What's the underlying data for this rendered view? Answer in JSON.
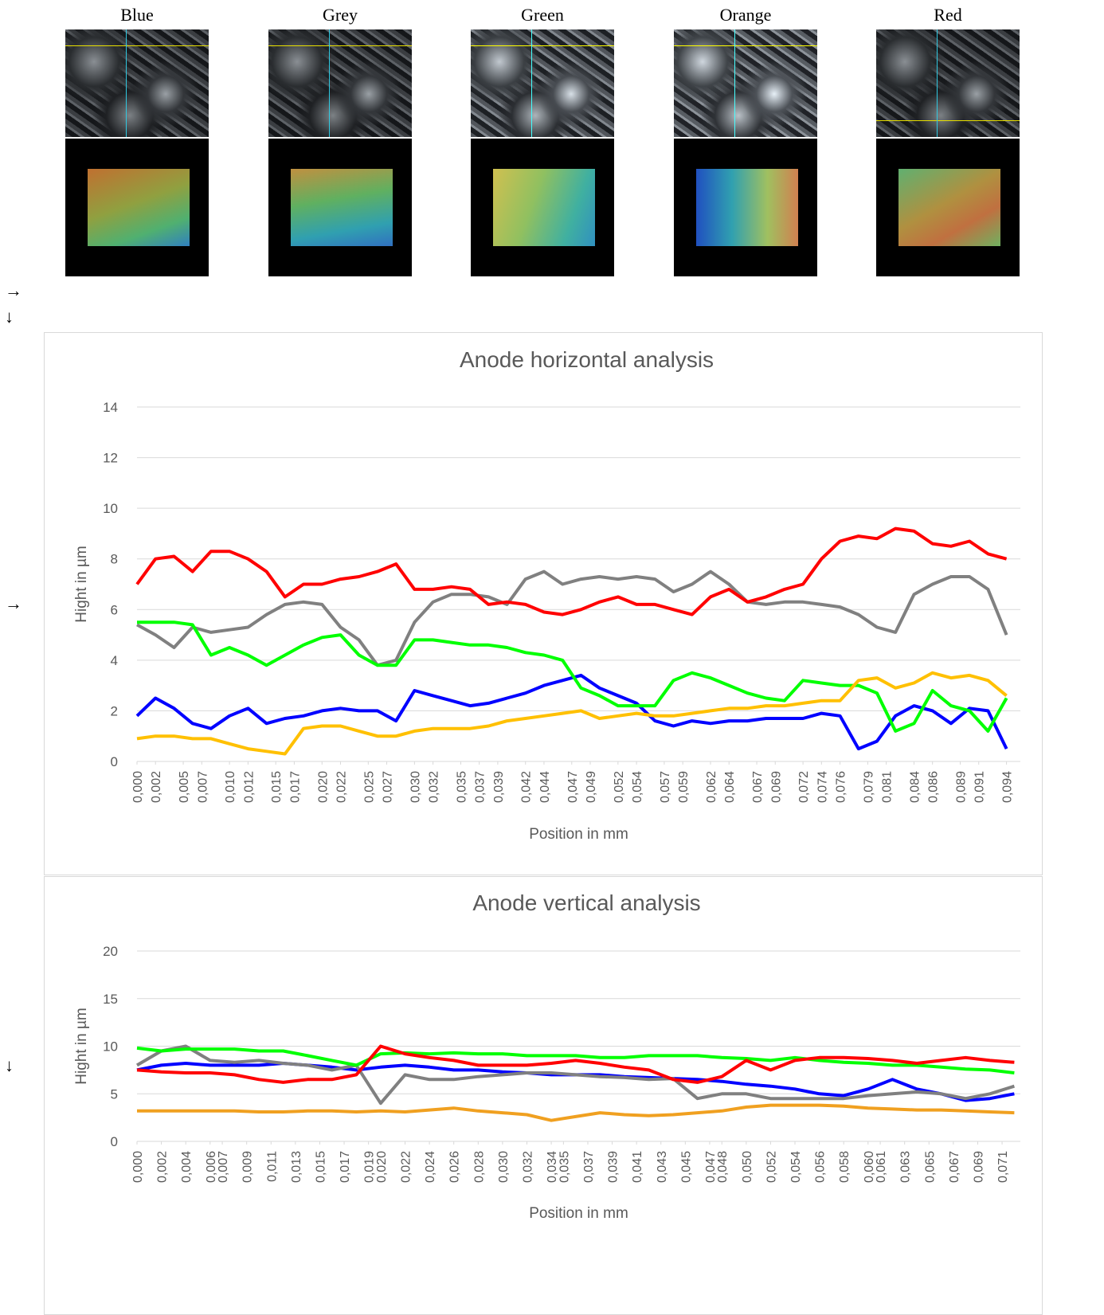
{
  "images": [
    {
      "label": "Blue"
    },
    {
      "label": "Grey"
    },
    {
      "label": "Green"
    },
    {
      "label": "Orange"
    },
    {
      "label": "Red"
    }
  ],
  "arrows": [
    "→",
    "↓",
    "→",
    "↓"
  ],
  "chart_data": [
    {
      "type": "line",
      "title": "Anode horizontal analysis",
      "x_label": "Position in mm",
      "y_label": "Hight in µm",
      "xlim": [
        0,
        0.0955
      ],
      "ylim": [
        0,
        14
      ],
      "yticks": [
        0,
        2,
        4,
        6,
        8,
        10,
        12,
        14
      ],
      "grid": true,
      "xticks": [
        {
          "value": 0,
          "label": "0,000"
        },
        {
          "value": 0.002,
          "label": "0,002"
        },
        {
          "value": 0.005,
          "label": "0,005"
        },
        {
          "value": 0.007,
          "label": "0,007"
        },
        {
          "value": 0.01,
          "label": "0,010"
        },
        {
          "value": 0.012,
          "label": "0,012"
        },
        {
          "value": 0.015,
          "label": "0,015"
        },
        {
          "value": 0.017,
          "label": "0,017"
        },
        {
          "value": 0.02,
          "label": "0,020"
        },
        {
          "value": 0.022,
          "label": "0,022"
        },
        {
          "value": 0.025,
          "label": "0,025"
        },
        {
          "value": 0.027,
          "label": "0,027"
        },
        {
          "value": 0.03,
          "label": "0,030"
        },
        {
          "value": 0.032,
          "label": "0,032"
        },
        {
          "value": 0.035,
          "label": "0,035"
        },
        {
          "value": 0.037,
          "label": "0,037"
        },
        {
          "value": 0.039,
          "label": "0,039"
        },
        {
          "value": 0.042,
          "label": "0,042"
        },
        {
          "value": 0.044,
          "label": "0,044"
        },
        {
          "value": 0.047,
          "label": "0,047"
        },
        {
          "value": 0.049,
          "label": "0,049"
        },
        {
          "value": 0.052,
          "label": "0,052"
        },
        {
          "value": 0.054,
          "label": "0,054"
        },
        {
          "value": 0.057,
          "label": "0,057"
        },
        {
          "value": 0.059,
          "label": "0,059"
        },
        {
          "value": 0.062,
          "label": "0,062"
        },
        {
          "value": 0.064,
          "label": "0,064"
        },
        {
          "value": 0.067,
          "label": "0,067"
        },
        {
          "value": 0.069,
          "label": "0,069"
        },
        {
          "value": 0.072,
          "label": "0,072"
        },
        {
          "value": 0.074,
          "label": "0,074"
        },
        {
          "value": 0.076,
          "label": "0,076"
        },
        {
          "value": 0.079,
          "label": "0,079"
        },
        {
          "value": 0.081,
          "label": "0,081"
        },
        {
          "value": 0.084,
          "label": "0,084"
        },
        {
          "value": 0.086,
          "label": "0,086"
        },
        {
          "value": 0.089,
          "label": "0,089"
        },
        {
          "value": 0.091,
          "label": "0,091"
        },
        {
          "value": 0.094,
          "label": "0,094"
        }
      ],
      "x": [
        0,
        0.002,
        0.004,
        0.006,
        0.008,
        0.01,
        0.012,
        0.014,
        0.016,
        0.018,
        0.02,
        0.022,
        0.024,
        0.026,
        0.028,
        0.03,
        0.032,
        0.034,
        0.036,
        0.038,
        0.04,
        0.042,
        0.044,
        0.046,
        0.048,
        0.05,
        0.052,
        0.054,
        0.056,
        0.058,
        0.06,
        0.062,
        0.064,
        0.066,
        0.068,
        0.07,
        0.072,
        0.074,
        0.076,
        0.078,
        0.08,
        0.082,
        0.084,
        0.086,
        0.088,
        0.09,
        0.092,
        0.094
      ],
      "series": [
        {
          "color": "#0000ff",
          "values": [
            1.8,
            2.5,
            2.1,
            1.5,
            1.3,
            1.8,
            2.1,
            1.5,
            1.7,
            1.8,
            2,
            2.1,
            2,
            2,
            1.6,
            2.8,
            2.6,
            2.4,
            2.2,
            2.3,
            2.5,
            2.7,
            3,
            3.2,
            3.4,
            2.9,
            2.6,
            2.3,
            1.6,
            1.4,
            1.6,
            1.5,
            1.6,
            1.6,
            1.7,
            1.7,
            1.7,
            1.9,
            1.8,
            0.5,
            0.8,
            1.8,
            2.2,
            2,
            1.5,
            2.1,
            2,
            0.5
          ]
        },
        {
          "color": "#808080",
          "values": [
            5.4,
            5,
            4.5,
            5.3,
            5.1,
            5.2,
            5.3,
            5.8,
            6.2,
            6.3,
            6.2,
            5.3,
            4.8,
            3.8,
            4,
            5.5,
            6.3,
            6.6,
            6.6,
            6.5,
            6.2,
            7.2,
            7.5,
            7,
            7.2,
            7.3,
            7.2,
            7.3,
            7.2,
            6.7,
            7,
            7.5,
            7,
            6.3,
            6.2,
            6.3,
            6.3,
            6.2,
            6.1,
            5.8,
            5.3,
            5.1,
            6.6,
            7,
            7.3,
            7.3,
            6.8,
            5
          ]
        },
        {
          "color": "#00ff00",
          "values": [
            5.5,
            5.5,
            5.5,
            5.4,
            4.2,
            4.5,
            4.2,
            3.8,
            4.2,
            4.6,
            4.9,
            5,
            4.2,
            3.8,
            3.8,
            4.8,
            4.8,
            4.7,
            4.6,
            4.6,
            4.5,
            4.3,
            4.2,
            4,
            2.9,
            2.6,
            2.2,
            2.2,
            2.2,
            3.2,
            3.5,
            3.3,
            3,
            2.7,
            2.5,
            2.4,
            3.2,
            3.1,
            3,
            3,
            2.7,
            1.2,
            1.5,
            2.8,
            2.2,
            2,
            1.2,
            2.5
          ]
        },
        {
          "color": "#ffc000",
          "values": [
            0.9,
            1,
            1,
            0.9,
            0.9,
            0.7,
            0.5,
            0.4,
            0.3,
            1.3,
            1.4,
            1.4,
            1.2,
            1,
            1,
            1.2,
            1.3,
            1.3,
            1.3,
            1.4,
            1.6,
            1.7,
            1.8,
            1.9,
            2,
            1.7,
            1.8,
            1.9,
            1.8,
            1.8,
            1.9,
            2,
            2.1,
            2.1,
            2.2,
            2.2,
            2.3,
            2.4,
            2.4,
            3.2,
            3.3,
            2.9,
            3.1,
            3.5,
            3.3,
            3.4,
            3.2,
            2.6
          ]
        },
        {
          "color": "#ff0000",
          "values": [
            7,
            8,
            8.1,
            7.5,
            8.3,
            8.3,
            8,
            7.5,
            6.5,
            7,
            7,
            7.2,
            7.3,
            7.5,
            7.8,
            6.8,
            6.8,
            6.9,
            6.8,
            6.2,
            6.3,
            6.2,
            5.9,
            5.8,
            6,
            6.3,
            6.5,
            6.2,
            6.2,
            6,
            5.8,
            6.5,
            6.8,
            6.3,
            6.5,
            6.8,
            7,
            8,
            8.7,
            8.9,
            8.8,
            9.2,
            9.1,
            8.6,
            8.5,
            8.7,
            8.2,
            8
          ]
        }
      ]
    },
    {
      "type": "line",
      "title": "Anode vertical analysis",
      "x_label": "Position in mm",
      "y_label": "Hight in µm",
      "xlim": [
        0,
        0.0725
      ],
      "ylim": [
        0,
        20
      ],
      "yticks": [
        0,
        5,
        10,
        15,
        20
      ],
      "grid": true,
      "xticks": [
        {
          "value": 0,
          "label": "0,000"
        },
        {
          "value": 0.002,
          "label": "0,002"
        },
        {
          "value": 0.004,
          "label": "0,004"
        },
        {
          "value": 0.006,
          "label": "0,006"
        },
        {
          "value": 0.007,
          "label": "0,007"
        },
        {
          "value": 0.009,
          "label": "0,009"
        },
        {
          "value": 0.011,
          "label": "0,011"
        },
        {
          "value": 0.013,
          "label": "0,013"
        },
        {
          "value": 0.015,
          "label": "0,015"
        },
        {
          "value": 0.017,
          "label": "0,017"
        },
        {
          "value": 0.019,
          "label": "0,019"
        },
        {
          "value": 0.02,
          "label": "0,020"
        },
        {
          "value": 0.022,
          "label": "0,022"
        },
        {
          "value": 0.024,
          "label": "0,024"
        },
        {
          "value": 0.026,
          "label": "0,026"
        },
        {
          "value": 0.028,
          "label": "0,028"
        },
        {
          "value": 0.03,
          "label": "0,030"
        },
        {
          "value": 0.032,
          "label": "0,032"
        },
        {
          "value": 0.034,
          "label": "0,034"
        },
        {
          "value": 0.035,
          "label": "0,035"
        },
        {
          "value": 0.037,
          "label": "0,037"
        },
        {
          "value": 0.039,
          "label": "0,039"
        },
        {
          "value": 0.041,
          "label": "0,041"
        },
        {
          "value": 0.043,
          "label": "0,043"
        },
        {
          "value": 0.045,
          "label": "0,045"
        },
        {
          "value": 0.047,
          "label": "0,047"
        },
        {
          "value": 0.048,
          "label": "0,048"
        },
        {
          "value": 0.05,
          "label": "0,050"
        },
        {
          "value": 0.052,
          "label": "0,052"
        },
        {
          "value": 0.054,
          "label": "0,054"
        },
        {
          "value": 0.056,
          "label": "0,056"
        },
        {
          "value": 0.058,
          "label": "0,058"
        },
        {
          "value": 0.06,
          "label": "0,060"
        },
        {
          "value": 0.061,
          "label": "0,061"
        },
        {
          "value": 0.063,
          "label": "0,063"
        },
        {
          "value": 0.065,
          "label": "0,065"
        },
        {
          "value": 0.067,
          "label": "0,067"
        },
        {
          "value": 0.069,
          "label": "0,069"
        },
        {
          "value": 0.071,
          "label": "0,071"
        }
      ],
      "x": [
        0,
        0.002,
        0.004,
        0.006,
        0.008,
        0.01,
        0.012,
        0.014,
        0.016,
        0.018,
        0.02,
        0.022,
        0.024,
        0.026,
        0.028,
        0.03,
        0.032,
        0.034,
        0.036,
        0.038,
        0.04,
        0.042,
        0.044,
        0.046,
        0.048,
        0.05,
        0.052,
        0.054,
        0.056,
        0.058,
        0.06,
        0.062,
        0.064,
        0.066,
        0.068,
        0.07,
        0.072
      ],
      "series": [
        {
          "color": "#0000ff",
          "values": [
            7.5,
            8,
            8.2,
            8,
            8,
            8,
            8.2,
            8,
            7.8,
            7.5,
            7.8,
            8,
            7.8,
            7.5,
            7.5,
            7.3,
            7.2,
            7,
            7,
            7,
            6.8,
            6.7,
            6.6,
            6.5,
            6.3,
            6,
            5.8,
            5.5,
            5,
            4.8,
            5.5,
            6.5,
            5.5,
            5,
            4.3,
            4.5,
            5
          ]
        },
        {
          "color": "#808080",
          "values": [
            8,
            9.5,
            10,
            8.5,
            8.3,
            8.5,
            8.2,
            8,
            7.5,
            8,
            4,
            7,
            6.5,
            6.5,
            6.8,
            7,
            7.2,
            7.2,
            7,
            6.8,
            6.7,
            6.5,
            6.6,
            4.5,
            5,
            5,
            4.5,
            4.5,
            4.5,
            4.5,
            4.8,
            5,
            5.2,
            5,
            4.5,
            5,
            5.8
          ]
        },
        {
          "color": "#00ff00",
          "values": [
            9.8,
            9.5,
            9.7,
            9.7,
            9.7,
            9.5,
            9.5,
            9,
            8.5,
            8,
            9.2,
            9.3,
            9.2,
            9.3,
            9.2,
            9.2,
            9,
            9,
            9,
            8.8,
            8.8,
            9,
            9,
            9,
            8.8,
            8.7,
            8.5,
            8.8,
            8.5,
            8.3,
            8.2,
            8,
            8,
            7.8,
            7.6,
            7.5,
            7.2
          ]
        },
        {
          "color": "#f0a020",
          "values": [
            3.2,
            3.2,
            3.2,
            3.2,
            3.2,
            3.1,
            3.1,
            3.2,
            3.2,
            3.1,
            3.2,
            3.1,
            3.3,
            3.5,
            3.2,
            3,
            2.8,
            2.2,
            2.6,
            3,
            2.8,
            2.7,
            2.8,
            3,
            3.2,
            3.6,
            3.8,
            3.8,
            3.8,
            3.7,
            3.5,
            3.4,
            3.3,
            3.3,
            3.2,
            3.1,
            3
          ]
        },
        {
          "color": "#ff0000",
          "values": [
            7.5,
            7.3,
            7.2,
            7.2,
            7,
            6.5,
            6.2,
            6.5,
            6.5,
            7,
            10,
            9.2,
            8.8,
            8.5,
            8,
            8,
            8,
            8.2,
            8.5,
            8.2,
            7.8,
            7.5,
            6.5,
            6.2,
            6.8,
            8.5,
            7.5,
            8.5,
            8.8,
            8.8,
            8.7,
            8.5,
            8.2,
            8.5,
            8.8,
            8.5,
            8.3
          ]
        }
      ]
    }
  ]
}
